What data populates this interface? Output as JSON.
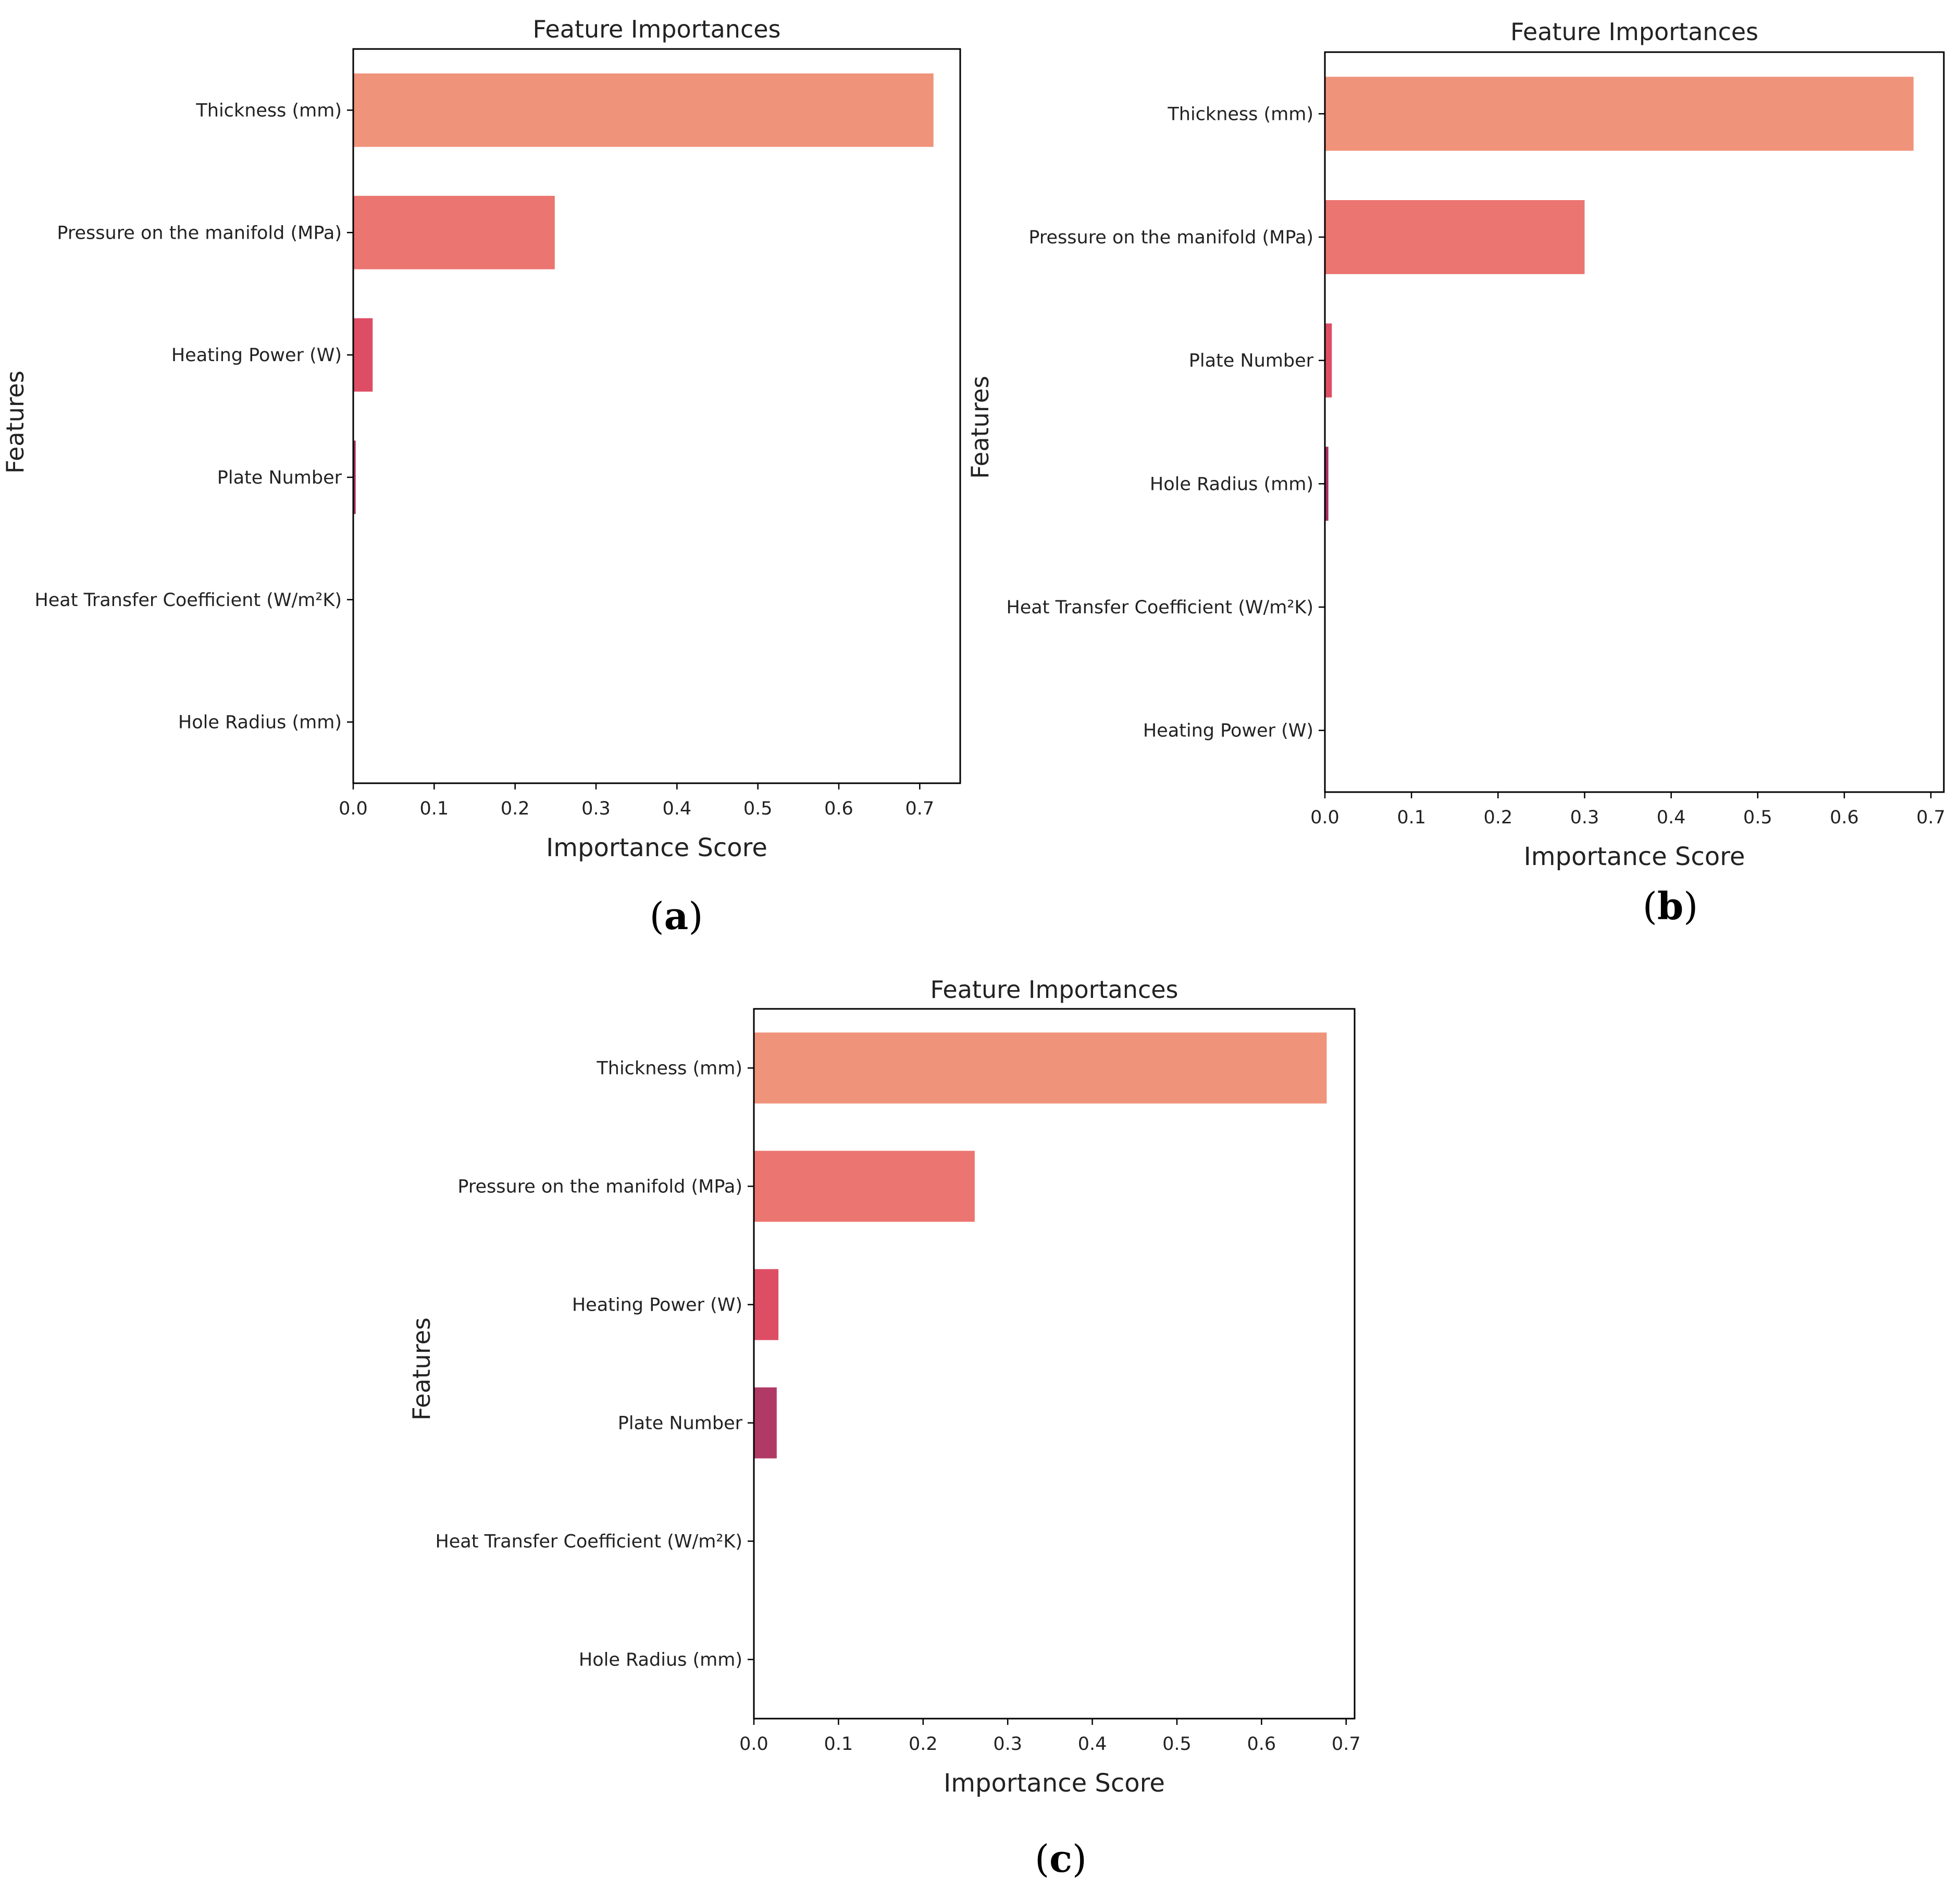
{
  "chart_data": [
    {
      "panel": "a",
      "type": "bar",
      "orientation": "horizontal",
      "title": "Feature Importances",
      "xlabel": "Importance Score",
      "ylabel": "Features",
      "caption": "(a)",
      "xlim": [
        0,
        0.75
      ],
      "xticks": [
        "0.0",
        "0.1",
        "0.2",
        "0.3",
        "0.4",
        "0.5",
        "0.6",
        "0.7"
      ],
      "grid": false,
      "categories": [
        "Thickness (mm)",
        "Pressure on the manifold (MPa)",
        "Heating Power (W)",
        "Plate Number",
        "Heat Transfer Coefficient (W/m²K)",
        "Hole Radius (mm)"
      ],
      "values": [
        0.717,
        0.249,
        0.024,
        0.003,
        0.0,
        0.0
      ],
      "colors": [
        "#f0937b",
        "#eb7570",
        "#dd4e65",
        "#a53060",
        "#7a1f5c",
        "#4a1650"
      ]
    },
    {
      "panel": "b",
      "type": "bar",
      "orientation": "horizontal",
      "title": "Feature Importances",
      "xlabel": "Importance Score",
      "ylabel": "Features",
      "caption": "(b)",
      "xlim": [
        0,
        0.715
      ],
      "xticks": [
        "0.0",
        "0.1",
        "0.2",
        "0.3",
        "0.4",
        "0.5",
        "0.6",
        "0.7"
      ],
      "grid": false,
      "categories": [
        "Thickness (mm)",
        "Pressure on the manifold (MPa)",
        "Plate Number",
        "Hole Radius (mm)",
        "Heat Transfer Coefficient (W/m²K)",
        "Heating Power (W)"
      ],
      "values": [
        0.68,
        0.3,
        0.008,
        0.004,
        0.0,
        0.0
      ],
      "colors": [
        "#f0937b",
        "#eb7570",
        "#dd4e65",
        "#a53060",
        "#7a1f5c",
        "#4a1650"
      ]
    },
    {
      "panel": "c",
      "type": "bar",
      "orientation": "horizontal",
      "title": "Feature Importances",
      "xlabel": "Importance Score",
      "ylabel": "Features",
      "caption": "(c)",
      "xlim": [
        0,
        0.71
      ],
      "xticks": [
        "0.0",
        "0.1",
        "0.2",
        "0.3",
        "0.4",
        "0.5",
        "0.6",
        "0.7"
      ],
      "grid": false,
      "categories": [
        "Thickness (mm)",
        "Pressure on the manifold (MPa)",
        "Heating Power (W)",
        "Plate Number",
        "Heat Transfer Coefficient (W/m²K)",
        "Hole Radius (mm)"
      ],
      "values": [
        0.677,
        0.261,
        0.029,
        0.027,
        0.0,
        0.0
      ],
      "colors": [
        "#f0937b",
        "#eb7570",
        "#dd4e65",
        "#b03a65",
        "#7a1f5c",
        "#4a1650"
      ]
    }
  ]
}
